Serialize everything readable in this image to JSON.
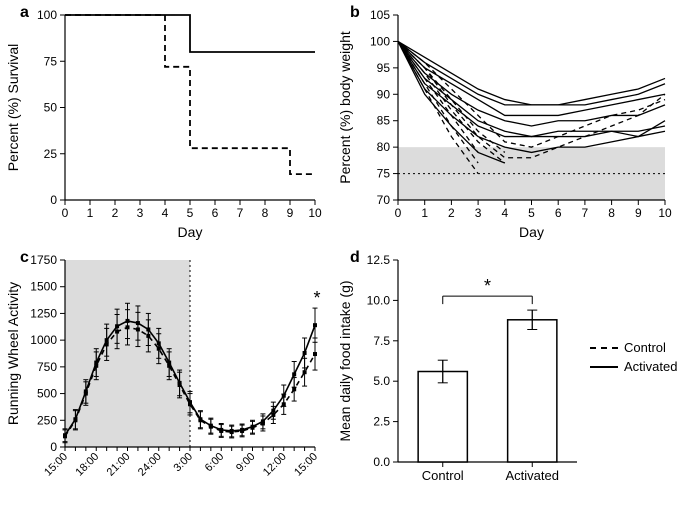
{
  "colors": {
    "bg": "#ffffff",
    "ink": "#000000",
    "shade": "#dcdcdc"
  },
  "legend": {
    "control": "Control",
    "activated": "Activated"
  },
  "panelA": {
    "letter": "a",
    "type": "line-step",
    "xlabel": "Day",
    "ylabel": "Percent (%) Survival",
    "xlim": [
      0,
      10
    ],
    "ylim": [
      0,
      100
    ],
    "xticks": [
      0,
      1,
      2,
      3,
      4,
      5,
      6,
      7,
      8,
      9,
      10
    ],
    "yticks": [
      0,
      25,
      50,
      75,
      100
    ],
    "series": {
      "activated": {
        "style": "solid",
        "steps": [
          [
            0,
            100
          ],
          [
            5,
            100
          ],
          [
            5,
            80
          ],
          [
            10,
            80
          ]
        ]
      },
      "control": {
        "style": "dashed",
        "steps": [
          [
            0,
            100
          ],
          [
            4,
            100
          ],
          [
            4,
            72
          ],
          [
            5,
            72
          ],
          [
            5,
            28
          ],
          [
            9,
            28
          ],
          [
            9,
            14
          ],
          [
            10,
            14
          ]
        ]
      }
    }
  },
  "panelB": {
    "letter": "b",
    "type": "line-multi",
    "xlabel": "Day",
    "ylabel": "Percent (%) body weight",
    "xlim": [
      0,
      10
    ],
    "ylim": [
      70,
      105
    ],
    "xticks": [
      0,
      1,
      2,
      3,
      4,
      5,
      6,
      7,
      8,
      9,
      10
    ],
    "yticks": [
      70,
      75,
      80,
      85,
      90,
      95,
      100,
      105
    ],
    "shadedBand": {
      "ymin": 70,
      "ymax": 80
    },
    "dotted_hline": 75,
    "activated": [
      [
        [
          0,
          100
        ],
        [
          1,
          96
        ],
        [
          2,
          93
        ],
        [
          3,
          90
        ],
        [
          4,
          88
        ],
        [
          5,
          88
        ],
        [
          6,
          88
        ],
        [
          7,
          89
        ],
        [
          8,
          90
        ],
        [
          9,
          91
        ],
        [
          10,
          93
        ]
      ],
      [
        [
          0,
          100
        ],
        [
          1,
          97
        ],
        [
          2,
          94
        ],
        [
          3,
          91
        ],
        [
          4,
          89
        ],
        [
          5,
          88
        ],
        [
          6,
          88
        ],
        [
          7,
          88
        ],
        [
          8,
          89
        ],
        [
          9,
          90
        ],
        [
          10,
          92
        ]
      ],
      [
        [
          0,
          100
        ],
        [
          1,
          95
        ],
        [
          2,
          92
        ],
        [
          3,
          89
        ],
        [
          4,
          86
        ],
        [
          5,
          86
        ],
        [
          6,
          86
        ],
        [
          7,
          87
        ],
        [
          8,
          88
        ],
        [
          9,
          89
        ],
        [
          10,
          90
        ]
      ],
      [
        [
          0,
          100
        ],
        [
          1,
          94
        ],
        [
          2,
          90
        ],
        [
          3,
          87
        ],
        [
          4,
          85
        ],
        [
          5,
          84
        ],
        [
          6,
          85
        ],
        [
          7,
          85
        ],
        [
          8,
          86
        ],
        [
          9,
          86
        ],
        [
          10,
          88
        ]
      ],
      [
        [
          0,
          100
        ],
        [
          1,
          93
        ],
        [
          2,
          89
        ],
        [
          3,
          85
        ],
        [
          4,
          83
        ],
        [
          5,
          82
        ],
        [
          6,
          83
        ],
        [
          7,
          83
        ],
        [
          8,
          83
        ],
        [
          9,
          83
        ],
        [
          10,
          84
        ]
      ],
      [
        [
          0,
          100
        ],
        [
          1,
          92
        ],
        [
          2,
          88
        ],
        [
          3,
          84
        ],
        [
          4,
          82
        ],
        [
          5,
          82
        ],
        [
          6,
          82
        ],
        [
          7,
          82
        ],
        [
          8,
          83
        ],
        [
          9,
          82
        ],
        [
          10,
          85
        ]
      ],
      [
        [
          0,
          100
        ],
        [
          1,
          91
        ],
        [
          2,
          86
        ],
        [
          3,
          82
        ],
        [
          4,
          80
        ],
        [
          5,
          79
        ],
        [
          6,
          80
        ],
        [
          7,
          80
        ],
        [
          8,
          81
        ],
        [
          9,
          82
        ],
        [
          10,
          83
        ]
      ],
      [
        [
          0,
          100
        ],
        [
          1,
          90
        ],
        [
          2,
          84
        ],
        [
          3,
          79
        ],
        [
          4,
          77
        ]
      ]
    ],
    "control": [
      [
        [
          0,
          100
        ],
        [
          1,
          96
        ],
        [
          2,
          91
        ],
        [
          3,
          86
        ],
        [
          4,
          81
        ],
        [
          5,
          80
        ],
        [
          6,
          82
        ],
        [
          7,
          84
        ],
        [
          8,
          86
        ],
        [
          9,
          87
        ],
        [
          10,
          89
        ]
      ],
      [
        [
          0,
          100
        ],
        [
          1,
          95
        ],
        [
          2,
          89
        ],
        [
          3,
          83
        ],
        [
          4,
          79
        ]
      ],
      [
        [
          0,
          100
        ],
        [
          1,
          94
        ],
        [
          2,
          87
        ],
        [
          3,
          81
        ],
        [
          4,
          77
        ]
      ],
      [
        [
          0,
          100
        ],
        [
          1,
          93
        ],
        [
          2,
          86
        ],
        [
          3,
          79
        ]
      ],
      [
        [
          0,
          100
        ],
        [
          1,
          92
        ],
        [
          2,
          84
        ],
        [
          3,
          77
        ]
      ],
      [
        [
          0,
          100
        ],
        [
          1,
          91
        ],
        [
          2,
          82
        ],
        [
          3,
          75
        ]
      ],
      [
        [
          0,
          100
        ],
        [
          1,
          95
        ],
        [
          2,
          88
        ],
        [
          3,
          82
        ],
        [
          4,
          78
        ],
        [
          5,
          78
        ],
        [
          6,
          80
        ],
        [
          7,
          82
        ],
        [
          8,
          84
        ],
        [
          9,
          86
        ],
        [
          10,
          90
        ]
      ]
    ]
  },
  "panelC": {
    "letter": "c",
    "type": "line-errorbars",
    "xlabel": "",
    "ylabel": "Running Wheel Activity",
    "ylim": [
      0,
      1750
    ],
    "yticks": [
      0,
      250,
      500,
      750,
      1000,
      1250,
      1500,
      1750
    ],
    "xticks_labels": [
      "15:00",
      "18:00",
      "21:00",
      "24:00",
      "3:00",
      "6:00",
      "9:00",
      "12:00",
      "15:00"
    ],
    "xticks_idx": [
      0,
      3,
      6,
      9,
      12,
      15,
      18,
      21,
      24
    ],
    "shadedBand_x": {
      "xmin": 0,
      "xmax": 12
    },
    "dotted_vline": 12,
    "star_idx": 24,
    "n_points": 25,
    "activated": {
      "style": "solid",
      "y": [
        110,
        260,
        520,
        790,
        1000,
        1130,
        1180,
        1160,
        1100,
        970,
        790,
        600,
        420,
        260,
        200,
        160,
        150,
        160,
        190,
        240,
        340,
        480,
        680,
        880,
        1140
      ],
      "err": [
        60,
        90,
        110,
        130,
        150,
        160,
        165,
        160,
        150,
        140,
        130,
        120,
        100,
        80,
        70,
        60,
        55,
        55,
        60,
        70,
        80,
        100,
        120,
        140,
        160
      ]
    },
    "control": {
      "style": "dashed",
      "y": [
        100,
        250,
        500,
        760,
        960,
        1080,
        1120,
        1100,
        1040,
        920,
        760,
        580,
        400,
        250,
        190,
        150,
        140,
        150,
        180,
        220,
        300,
        400,
        540,
        700,
        870
      ],
      "err": [
        60,
        90,
        110,
        130,
        150,
        160,
        165,
        160,
        150,
        140,
        130,
        120,
        100,
        80,
        70,
        60,
        55,
        55,
        60,
        70,
        80,
        95,
        110,
        130,
        150
      ]
    }
  },
  "panelD": {
    "letter": "d",
    "type": "bar",
    "ylabel": "Mean daily food intake (g)",
    "ylim": [
      0,
      12.5
    ],
    "yticks": [
      0,
      2.5,
      5.0,
      7.5,
      10.0,
      12.5
    ],
    "categories": [
      "Control",
      "Activated"
    ],
    "values": [
      5.6,
      8.8
    ],
    "errors": [
      0.7,
      0.6
    ],
    "sig_label": "*",
    "bar_fill": "#ffffff",
    "bar_stroke": "#000000",
    "bar_width": 0.55
  }
}
